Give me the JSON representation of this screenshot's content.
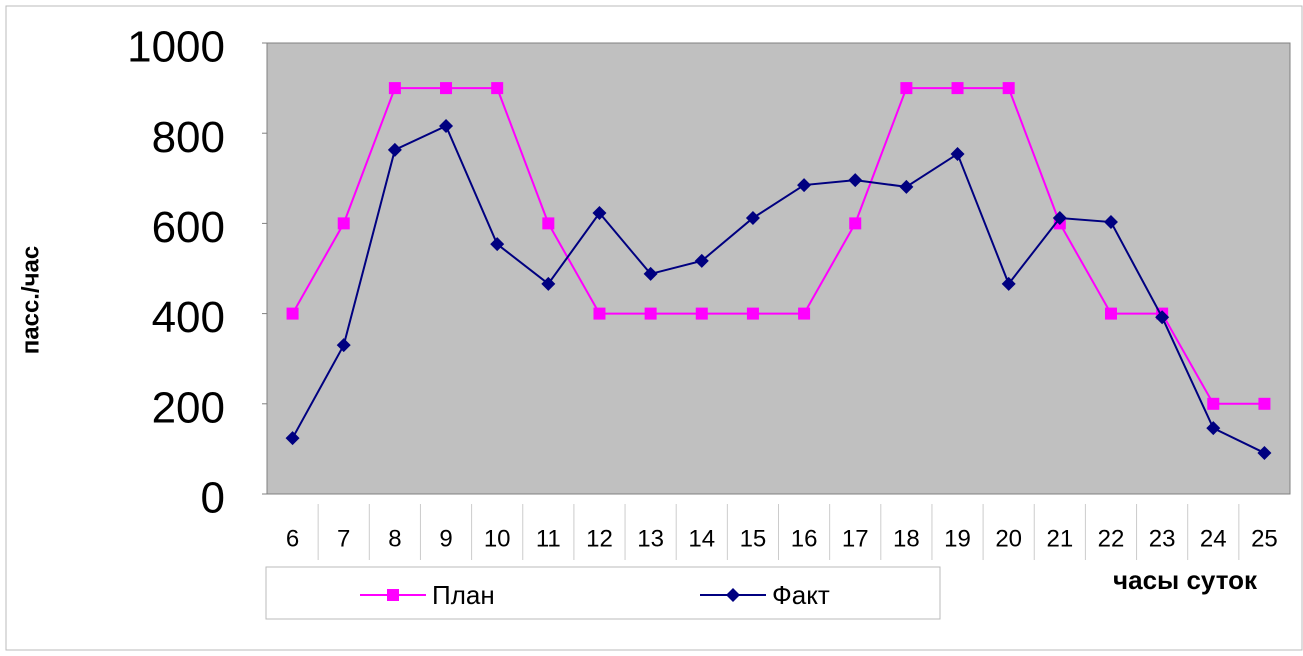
{
  "chart_data": {
    "type": "line",
    "y_label": "пасс./час",
    "x_label": "часы суток",
    "categories": [
      "6",
      "7",
      "8",
      "9",
      "10",
      "11",
      "12",
      "13",
      "14",
      "15",
      "16",
      "17",
      "18",
      "19",
      "20",
      "21",
      "22",
      "23",
      "24",
      "25"
    ],
    "series": [
      {
        "name": "План",
        "color": "#ff00ff",
        "marker": "square",
        "values": [
          400,
          600,
          900,
          900,
          900,
          600,
          400,
          400,
          400,
          400,
          400,
          600,
          900,
          900,
          900,
          600,
          400,
          400,
          200,
          200
        ]
      },
      {
        "name": "Факт",
        "color": "#000080",
        "marker": "diamond",
        "values": [
          124,
          330,
          763,
          816,
          554,
          466,
          623,
          488,
          517,
          612,
          685,
          696,
          681,
          754,
          466,
          612,
          603,
          392,
          146,
          91
        ]
      }
    ],
    "ylim": [
      0,
      1000
    ],
    "yticks": [
      0,
      200,
      400,
      600,
      800,
      1000
    ],
    "plot_background": "#c0c0c0"
  }
}
